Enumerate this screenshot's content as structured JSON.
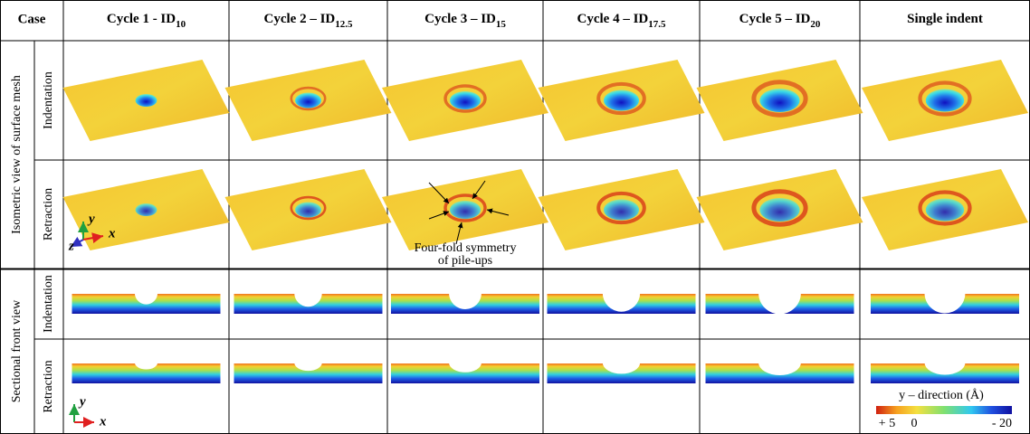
{
  "table": {
    "corner": "Case",
    "columns": [
      {
        "text": "Cycle 1 - ID",
        "sub": "10"
      },
      {
        "text": "Cycle 2 – ID",
        "sub": "12.5"
      },
      {
        "text": "Cycle 3 – ID",
        "sub": "15"
      },
      {
        "text": "Cycle 4 – ID",
        "sub": "17.5"
      },
      {
        "text": "Cycle 5 – ID",
        "sub": "20"
      },
      {
        "text": "Single indent"
      }
    ],
    "groups": [
      {
        "label": "Isometric view of surface mesh",
        "rows": [
          "Indentation",
          "Retraction"
        ]
      },
      {
        "label": "Sectional front view",
        "rows": [
          "Indentation",
          "Retraction"
        ]
      }
    ]
  },
  "annotation": {
    "lines": [
      "Four-fold symmetry",
      "of pile-ups"
    ]
  },
  "iso_axes": [
    "z",
    "y",
    "x"
  ],
  "section_axes": [
    "y",
    "x"
  ],
  "colorbar": {
    "title": "y – direction (Å)",
    "ticks": [
      "+ 5",
      "0",
      "- 20"
    ]
  }
}
